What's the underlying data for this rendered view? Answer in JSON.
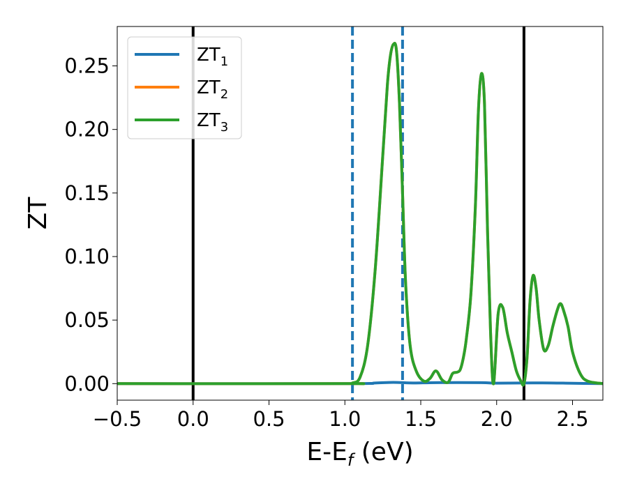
{
  "chart_data": {
    "type": "line",
    "xlabel": "E-E",
    "xlabel_sub": "f",
    "xlabel_unit": " (eV)",
    "ylabel": "ZT",
    "xlim": [
      -0.5,
      2.7
    ],
    "ylim": [
      -0.013,
      0.281
    ],
    "xticks": [
      -0.5,
      0.0,
      0.5,
      1.0,
      1.5,
      2.0,
      2.5
    ],
    "xtick_labels": [
      "−0.5",
      "0.0",
      "0.5",
      "1.0",
      "1.5",
      "2.0",
      "2.5"
    ],
    "yticks": [
      0.0,
      0.05,
      0.1,
      0.15,
      0.2,
      0.25
    ],
    "ytick_labels": [
      "0.00",
      "0.05",
      "0.10",
      "0.15",
      "0.20",
      "0.25"
    ],
    "legend_position": "top-left",
    "vertical_lines": [
      {
        "x": 0.0,
        "style": "solid",
        "color": "#000000"
      },
      {
        "x": 1.05,
        "style": "dashed",
        "color": "#1f77b4"
      },
      {
        "x": 1.38,
        "style": "dashed",
        "color": "#1f77b4"
      },
      {
        "x": 2.18,
        "style": "solid",
        "color": "#000000"
      }
    ],
    "series": [
      {
        "name": "ZT",
        "sub": "1",
        "color": "#1f77b4",
        "x": [
          -0.5,
          1.0,
          1.2,
          1.32,
          1.45,
          1.6,
          1.9,
          2.0,
          2.3,
          2.5,
          2.7
        ],
        "y": [
          0,
          0,
          0.0005,
          0.001,
          0.0005,
          0.0008,
          0.0008,
          0.0004,
          0.0006,
          0.0003,
          0
        ]
      },
      {
        "name": "ZT",
        "sub": "2",
        "color": "#ff7f0e",
        "x": [
          -0.5,
          1.0,
          1.05,
          1.1,
          1.15,
          1.2,
          1.25,
          1.28,
          1.3,
          1.32,
          1.34,
          1.36,
          1.38,
          1.4,
          1.43,
          1.47,
          1.52,
          1.56,
          1.6,
          1.64,
          1.68,
          1.71,
          1.74,
          1.76,
          1.78,
          1.8,
          1.83,
          1.86,
          1.88,
          1.9,
          1.92,
          1.94,
          1.96,
          1.98,
          2.01,
          2.04,
          2.07,
          2.1,
          2.13,
          2.16,
          2.18,
          2.2,
          2.22,
          2.24,
          2.26,
          2.28,
          2.31,
          2.34,
          2.37,
          2.4,
          2.42,
          2.44,
          2.47,
          2.5,
          2.55,
          2.6,
          2.7
        ],
        "y": [
          0,
          0,
          0.0005,
          0.005,
          0.03,
          0.09,
          0.18,
          0.235,
          0.258,
          0.267,
          0.262,
          0.22,
          0.15,
          0.08,
          0.03,
          0.01,
          0.002,
          0.004,
          0.01,
          0.003,
          0.001,
          0.008,
          0.009,
          0.011,
          0.02,
          0.035,
          0.07,
          0.14,
          0.215,
          0.244,
          0.22,
          0.12,
          0.04,
          0.0,
          0.055,
          0.06,
          0.04,
          0.025,
          0.01,
          0.002,
          0.0,
          0.02,
          0.065,
          0.085,
          0.075,
          0.05,
          0.027,
          0.03,
          0.045,
          0.058,
          0.063,
          0.058,
          0.045,
          0.025,
          0.008,
          0.002,
          0
        ]
      },
      {
        "name": "ZT",
        "sub": "3",
        "color": "#2ca02c",
        "x": [
          -0.5,
          1.0,
          1.05,
          1.1,
          1.15,
          1.2,
          1.25,
          1.28,
          1.3,
          1.32,
          1.34,
          1.36,
          1.38,
          1.4,
          1.43,
          1.47,
          1.52,
          1.56,
          1.6,
          1.64,
          1.68,
          1.71,
          1.74,
          1.76,
          1.78,
          1.8,
          1.83,
          1.86,
          1.88,
          1.9,
          1.92,
          1.94,
          1.96,
          1.98,
          2.01,
          2.04,
          2.07,
          2.1,
          2.13,
          2.16,
          2.18,
          2.2,
          2.22,
          2.24,
          2.26,
          2.28,
          2.31,
          2.34,
          2.37,
          2.4,
          2.42,
          2.44,
          2.47,
          2.5,
          2.55,
          2.6,
          2.7
        ],
        "y": [
          0,
          0,
          0.0005,
          0.005,
          0.03,
          0.09,
          0.18,
          0.235,
          0.258,
          0.267,
          0.262,
          0.22,
          0.15,
          0.08,
          0.03,
          0.01,
          0.002,
          0.004,
          0.01,
          0.003,
          0.001,
          0.008,
          0.009,
          0.011,
          0.02,
          0.035,
          0.07,
          0.14,
          0.215,
          0.244,
          0.22,
          0.12,
          0.04,
          0.0,
          0.055,
          0.06,
          0.04,
          0.025,
          0.01,
          0.002,
          0.0,
          0.02,
          0.065,
          0.085,
          0.075,
          0.05,
          0.027,
          0.03,
          0.045,
          0.058,
          0.063,
          0.058,
          0.045,
          0.025,
          0.008,
          0.002,
          0
        ]
      }
    ]
  }
}
